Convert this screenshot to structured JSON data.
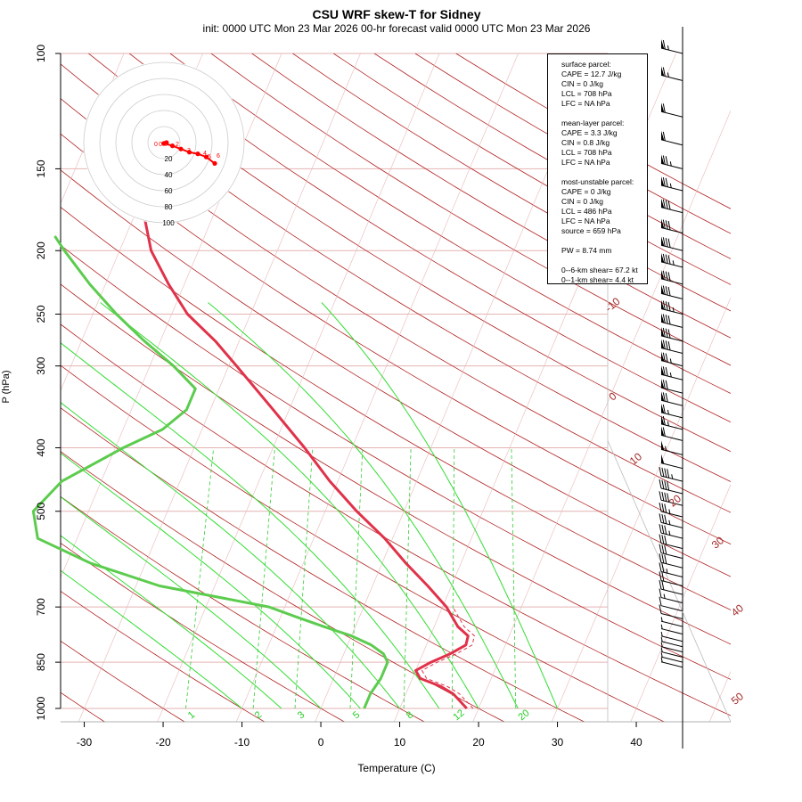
{
  "title": "CSU WRF skew-T for Sidney",
  "subtitle": "init: 0000 UTC Mon 23 Mar 2026     00-hr forecast valid 0000 UTC Mon 23 Mar 2026",
  "xlabel": "Temperature (C)",
  "ylabel": "P (hPa)",
  "info": {
    "surface": [
      "surface parcel:",
      "CAPE = 12.7 J/kg",
      "CIN = 0 J/kg",
      "LCL = 708 hPa",
      "LFC = NA hPa"
    ],
    "mean_layer": [
      "mean-layer parcel:",
      "CAPE = 3.3 J/kg",
      "CIN = 0.8 J/kg",
      "LCL = 708 hPa",
      "LFC = NA hPa"
    ],
    "most_unstable": [
      "most-unstable parcel:",
      "CAPE = 0 J/kg",
      "CIN = 0 J/kg",
      "LCL = 486 hPa",
      "LFC = NA hPa",
      "source = 659 hPa"
    ],
    "pw": "PW =  8.74 mm",
    "shear": [
      "0--6-km shear= 67.2 kt",
      "0--1-km shear= 4.4 kt"
    ]
  },
  "chart_data": {
    "type": "line",
    "title": "CSU WRF skew-T for Sidney",
    "xlabel": "Temperature (C)",
    "ylabel": "P (hPa)",
    "x_ticks": [
      -30,
      -20,
      -10,
      0,
      10,
      20,
      30,
      40
    ],
    "x_range": [
      -33,
      45
    ],
    "y_ticks": [
      100,
      150,
      200,
      250,
      300,
      400,
      500,
      700,
      850,
      1000
    ],
    "y_range": [
      1000,
      100
    ],
    "y_scale": "log",
    "skew": true,
    "colors": {
      "temperature": "#e0324a",
      "dewpoint": "#5ccc4e",
      "isotherm": "#a52a2a",
      "dry_adiabat": "#b22222",
      "moist_adiabat": "#33cc33",
      "mixing_ratio": "#33cc33",
      "hodograph": "#ff0000"
    },
    "series": [
      {
        "name": "temperature",
        "points": [
          [
            1000,
            18.5
          ],
          [
            950,
            16
          ],
          [
            925,
            14
          ],
          [
            900,
            11
          ],
          [
            875,
            10
          ],
          [
            850,
            11.5
          ],
          [
            825,
            13.5
          ],
          [
            800,
            15
          ],
          [
            775,
            14.8
          ],
          [
            750,
            13
          ],
          [
            700,
            10.5
          ],
          [
            650,
            7
          ],
          [
            600,
            3
          ],
          [
            550,
            -1
          ],
          [
            500,
            -6
          ],
          [
            450,
            -11
          ],
          [
            400,
            -16
          ],
          [
            350,
            -22
          ],
          [
            300,
            -29
          ],
          [
            275,
            -33
          ],
          [
            250,
            -38
          ],
          [
            225,
            -42
          ],
          [
            200,
            -46
          ],
          [
            175,
            -49
          ],
          [
            150,
            -50
          ],
          [
            125,
            -50
          ],
          [
            110,
            -50
          ]
        ]
      },
      {
        "name": "dewpoint",
        "points": [
          [
            1000,
            5.5
          ],
          [
            950,
            5.5
          ],
          [
            900,
            6
          ],
          [
            850,
            6
          ],
          [
            825,
            5
          ],
          [
            800,
            3
          ],
          [
            775,
            0
          ],
          [
            750,
            -4
          ],
          [
            725,
            -8
          ],
          [
            700,
            -12
          ],
          [
            650,
            -27
          ],
          [
            600,
            -37
          ],
          [
            550,
            -45
          ],
          [
            500,
            -47
          ],
          [
            450,
            -45
          ],
          [
            400,
            -39
          ],
          [
            375,
            -35
          ],
          [
            350,
            -33
          ],
          [
            325,
            -33
          ],
          [
            300,
            -37
          ],
          [
            275,
            -42
          ],
          [
            250,
            -47
          ],
          [
            225,
            -52
          ],
          [
            200,
            -57
          ],
          [
            190,
            -59
          ]
        ]
      }
    ],
    "isotherm_labels": [
      "-10",
      "0",
      "10",
      "20",
      "30",
      "40",
      "50"
    ],
    "mixing_ratio_labels": [
      "1",
      "2",
      "3",
      "5",
      "8",
      "12",
      "20"
    ],
    "hodograph": {
      "rings": [
        "20",
        "40",
        "60",
        "80",
        "100"
      ],
      "points": [
        [
          0.3,
          0.0
        ],
        [
          0.0,
          0.25
        ],
        [
          1,
          1.0
        ],
        [
          2,
          2.0
        ],
        [
          3,
          3.0
        ],
        [
          4,
          3.5
        ],
        [
          5,
          4.5
        ],
        [
          6,
          6.5
        ]
      ],
      "labels": [
        "0",
        "0.5",
        "2",
        "3",
        "4",
        "5",
        "6"
      ]
    },
    "wind_barbs": [
      {
        "p": 100,
        "spd": 65
      },
      {
        "p": 110,
        "spd": 65
      },
      {
        "p": 125,
        "spd": 60
      },
      {
        "p": 138,
        "spd": 60
      },
      {
        "p": 150,
        "spd": 75
      },
      {
        "p": 162,
        "spd": 75
      },
      {
        "p": 175,
        "spd": 80
      },
      {
        "p": 188,
        "spd": 80
      },
      {
        "p": 200,
        "spd": 80
      },
      {
        "p": 212,
        "spd": 85
      },
      {
        "p": 225,
        "spd": 80
      },
      {
        "p": 237,
        "spd": 80
      },
      {
        "p": 250,
        "spd": 85
      },
      {
        "p": 262,
        "spd": 80
      },
      {
        "p": 275,
        "spd": 80
      },
      {
        "p": 287,
        "spd": 80
      },
      {
        "p": 300,
        "spd": 75
      },
      {
        "p": 315,
        "spd": 75
      },
      {
        "p": 330,
        "spd": 70
      },
      {
        "p": 345,
        "spd": 70
      },
      {
        "p": 360,
        "spd": 65
      },
      {
        "p": 375,
        "spd": 65
      },
      {
        "p": 390,
        "spd": 60
      },
      {
        "p": 410,
        "spd": 55
      },
      {
        "p": 430,
        "spd": 50
      },
      {
        "p": 450,
        "spd": 45
      },
      {
        "p": 470,
        "spd": 40
      },
      {
        "p": 490,
        "spd": 40
      },
      {
        "p": 510,
        "spd": 35
      },
      {
        "p": 530,
        "spd": 35
      },
      {
        "p": 550,
        "spd": 35
      },
      {
        "p": 570,
        "spd": 30
      },
      {
        "p": 590,
        "spd": 30
      },
      {
        "p": 610,
        "spd": 30
      },
      {
        "p": 630,
        "spd": 25
      },
      {
        "p": 650,
        "spd": 20
      },
      {
        "p": 670,
        "spd": 20
      },
      {
        "p": 690,
        "spd": 15
      },
      {
        "p": 710,
        "spd": 10
      },
      {
        "p": 730,
        "spd": 10
      },
      {
        "p": 750,
        "spd": 5
      },
      {
        "p": 770,
        "spd": 5
      },
      {
        "p": 790,
        "spd": 5
      },
      {
        "p": 805,
        "spd": 5
      },
      {
        "p": 820,
        "spd": 5
      },
      {
        "p": 835,
        "spd": 5
      },
      {
        "p": 850,
        "spd": 5
      },
      {
        "p": 865,
        "spd": 5
      }
    ]
  }
}
